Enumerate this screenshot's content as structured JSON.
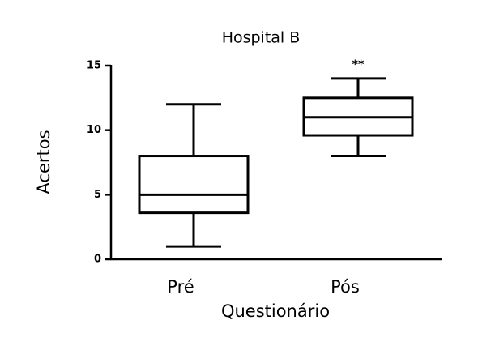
{
  "chart_data": {
    "type": "box",
    "title": "Hospital B",
    "x_label": "Questionário",
    "y_label": "Acertos",
    "annotation": "**",
    "categories": [
      "Pré",
      "Pós"
    ],
    "min": [
      1,
      8
    ],
    "q1": [
      3.6,
      9.6
    ],
    "median": [
      5,
      11
    ],
    "q3": [
      8,
      12.5
    ],
    "max": [
      12,
      14
    ],
    "color": "#000000",
    "ylim": [
      0,
      15
    ],
    "yticks": [
      0,
      5,
      10,
      15
    ]
  }
}
